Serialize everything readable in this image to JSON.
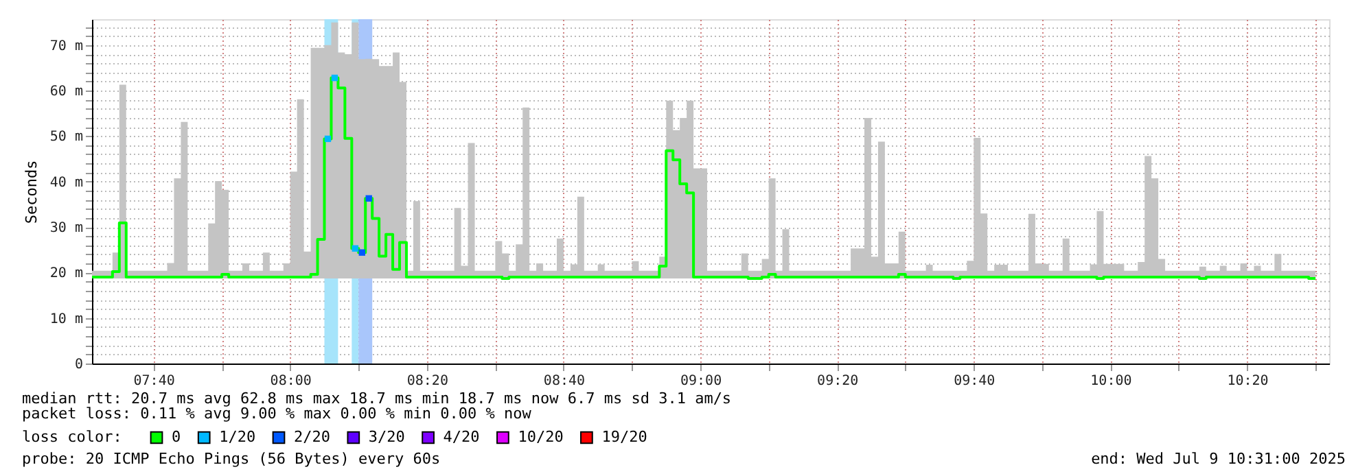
{
  "chart_data": {
    "type": "step",
    "ylabel": "Seconds",
    "legend_title": "loss color:",
    "legend": "bottom",
    "grid": true,
    "xlim": [
      "2025-07-09T07:31",
      "2025-07-09T10:32"
    ],
    "xticks": [
      {
        "value": "2025-07-09T07:40",
        "label": "07:40"
      },
      {
        "value": "2025-07-09T07:50",
        "label": null
      },
      {
        "value": "2025-07-09T08:00",
        "label": "08:00"
      },
      {
        "value": "2025-07-09T08:10",
        "label": null
      },
      {
        "value": "2025-07-09T08:20",
        "label": "08:20"
      },
      {
        "value": "2025-07-09T08:30",
        "label": null
      },
      {
        "value": "2025-07-09T08:40",
        "label": "08:40"
      },
      {
        "value": "2025-07-09T08:50",
        "label": null
      },
      {
        "value": "2025-07-09T09:00",
        "label": "09:00"
      },
      {
        "value": "2025-07-09T09:10",
        "label": null
      },
      {
        "value": "2025-07-09T09:20",
        "label": "09:20"
      },
      {
        "value": "2025-07-09T09:30",
        "label": null
      },
      {
        "value": "2025-07-09T09:40",
        "label": "09:40"
      },
      {
        "value": "2025-07-09T09:50",
        "label": null
      },
      {
        "value": "2025-07-09T10:00",
        "label": "10:00"
      },
      {
        "value": "2025-07-09T10:10",
        "label": null
      },
      {
        "value": "2025-07-09T10:20",
        "label": "10:20"
      },
      {
        "value": "2025-07-09T10:30",
        "label": null
      }
    ],
    "ylim": [
      0,
      75.7
    ],
    "yticks": [
      0,
      {
        "value": 2,
        "label": null
      },
      {
        "value": 4,
        "label": null
      },
      {
        "value": 6,
        "label": null
      },
      {
        "value": 8,
        "label": null
      },
      {
        "value": 10,
        "label": "10 m"
      },
      {
        "value": 12,
        "label": null
      },
      {
        "value": 14,
        "label": null
      },
      {
        "value": 16,
        "label": null
      },
      {
        "value": 18,
        "label": null
      },
      {
        "value": 20,
        "label": "20 m"
      },
      {
        "value": 22,
        "label": null
      },
      {
        "value": 24,
        "label": null
      },
      {
        "value": 26,
        "label": null
      },
      {
        "value": 28,
        "label": null
      },
      {
        "value": 30,
        "label": "30 m"
      },
      {
        "value": 32,
        "label": null
      },
      {
        "value": 34,
        "label": null
      },
      {
        "value": 36,
        "label": null
      },
      {
        "value": 38,
        "label": null
      },
      {
        "value": 40,
        "label": "40 m"
      },
      {
        "value": 42,
        "label": null
      },
      {
        "value": 44,
        "label": null
      },
      {
        "value": 46,
        "label": null
      },
      {
        "value": 48,
        "label": null
      },
      {
        "value": 50,
        "label": "50 m"
      },
      {
        "value": 52,
        "label": null
      },
      {
        "value": 54,
        "label": null
      },
      {
        "value": 56,
        "label": null
      },
      {
        "value": 58,
        "label": null
      },
      {
        "value": 60,
        "label": "60 m"
      },
      {
        "value": 62,
        "label": null
      },
      {
        "value": 64,
        "label": null
      },
      {
        "value": 66,
        "label": null
      },
      {
        "value": 68,
        "label": null
      },
      {
        "value": 70,
        "label": "70 m"
      },
      {
        "value": 72,
        "label": null
      },
      {
        "value": 74,
        "label": null
      }
    ],
    "bands": [
      {
        "axis": "x",
        "from": "2025-07-09T08:05",
        "to": "2025-07-09T08:07",
        "color": "#a6e4fb"
      },
      {
        "axis": "x",
        "from": "2025-07-09T08:09",
        "to": "2025-07-09T08:10",
        "color": "#a6e4fb"
      },
      {
        "axis": "x",
        "from": "2025-07-09T08:10",
        "to": "2025-07-09T08:12",
        "color": "#a9c6fb"
      }
    ],
    "series": [
      {
        "name": "0",
        "color": "#00ff00",
        "x": [
          "2025-07-09T07:31",
          "2025-07-09T07:34",
          "2025-07-09T07:35",
          "2025-07-09T07:36",
          "2025-07-09T07:42",
          "2025-07-09T07:43",
          "2025-07-09T07:44",
          "2025-07-09T07:45",
          "2025-07-09T07:48",
          "2025-07-09T07:49",
          "2025-07-09T07:50",
          "2025-07-09T07:51",
          "2025-07-09T07:53",
          "2025-07-09T07:54",
          "2025-07-09T07:56",
          "2025-07-09T07:57",
          "2025-07-09T07:59",
          "2025-07-09T08:00",
          "2025-07-09T08:01",
          "2025-07-09T08:02",
          "2025-07-09T08:03",
          "2025-07-09T08:04",
          "2025-07-09T08:05",
          "2025-07-09T08:06",
          "2025-07-09T08:07",
          "2025-07-09T08:08",
          "2025-07-09T08:09",
          "2025-07-09T08:10",
          "2025-07-09T08:11",
          "2025-07-09T08:12",
          "2025-07-09T08:13",
          "2025-07-09T08:14",
          "2025-07-09T08:15",
          "2025-07-09T08:16",
          "2025-07-09T08:17",
          "2025-07-09T08:18",
          "2025-07-09T08:19",
          "2025-07-09T08:24",
          "2025-07-09T08:25",
          "2025-07-09T08:26",
          "2025-07-09T08:27",
          "2025-07-09T08:30",
          "2025-07-09T08:31",
          "2025-07-09T08:32",
          "2025-07-09T08:33",
          "2025-07-09T08:34",
          "2025-07-09T08:35",
          "2025-07-09T08:36",
          "2025-07-09T08:37",
          "2025-07-09T08:39",
          "2025-07-09T08:40",
          "2025-07-09T08:41",
          "2025-07-09T08:42",
          "2025-07-09T08:43",
          "2025-07-09T08:45",
          "2025-07-09T08:46",
          "2025-07-09T08:50",
          "2025-07-09T08:51",
          "2025-07-09T08:54",
          "2025-07-09T08:55",
          "2025-07-09T08:56",
          "2025-07-09T08:57",
          "2025-07-09T08:58",
          "2025-07-09T08:59",
          "2025-07-09T09:01",
          "2025-07-09T09:06",
          "2025-07-09T09:07",
          "2025-07-09T09:09",
          "2025-07-09T09:10",
          "2025-07-09T09:11",
          "2025-07-09T09:12",
          "2025-07-09T09:13",
          "2025-07-09T09:22",
          "2025-07-09T09:24",
          "2025-07-09T09:25",
          "2025-07-09T09:26",
          "2025-07-09T09:27",
          "2025-07-09T09:29",
          "2025-07-09T09:30",
          "2025-07-09T09:33",
          "2025-07-09T09:34",
          "2025-07-09T09:37",
          "2025-07-09T09:38",
          "2025-07-09T09:39",
          "2025-07-09T09:40",
          "2025-07-09T09:41",
          "2025-07-09T09:42",
          "2025-07-09T09:43",
          "2025-07-09T09:45",
          "2025-07-09T09:48",
          "2025-07-09T09:49",
          "2025-07-09T09:50",
          "2025-07-09T09:51",
          "2025-07-09T09:53",
          "2025-07-09T09:54",
          "2025-07-09T09:57",
          "2025-07-09T09:58",
          "2025-07-09T09:59",
          "2025-07-09T10:02",
          "2025-07-09T10:04",
          "2025-07-09T10:05",
          "2025-07-09T10:06",
          "2025-07-09T10:07",
          "2025-07-09T10:08",
          "2025-07-09T10:13",
          "2025-07-09T10:14",
          "2025-07-09T10:16",
          "2025-07-09T10:17",
          "2025-07-09T10:19",
          "2025-07-09T10:20",
          "2025-07-09T10:21",
          "2025-07-09T10:22",
          "2025-07-09T10:24",
          "2025-07-09T10:25",
          "2025-07-09T10:27",
          "2025-07-09T10:29",
          "2025-07-09T10:30"
        ],
        "values": [
          19.0,
          20.2,
          30.9,
          19.0,
          19.0,
          19.0,
          19.0,
          19.0,
          19.0,
          19.0,
          19.6,
          19.0,
          19.0,
          19.0,
          19.0,
          19.0,
          19.0,
          19.0,
          19.0,
          19.0,
          19.6,
          27.3,
          49.4,
          62.8,
          60.6,
          49.5,
          25.3,
          24.4,
          36.3,
          31.9,
          23.6,
          28.4,
          20.7,
          26.6,
          19.0,
          19.0,
          19.0,
          19.0,
          19.0,
          19.0,
          19.0,
          19.0,
          18.7,
          19.0,
          19.0,
          19.0,
          19.0,
          19.0,
          19.0,
          19.0,
          19.0,
          19.0,
          19.0,
          19.0,
          19.0,
          19.0,
          19.0,
          19.0,
          21.4,
          46.8,
          44.8,
          39.5,
          37.5,
          19.0,
          19.0,
          19.0,
          18.7,
          19.0,
          19.6,
          19.0,
          19.0,
          19.0,
          19.0,
          19.0,
          19.0,
          19.0,
          19.0,
          19.6,
          19.0,
          19.0,
          19.0,
          18.7,
          19.0,
          19.0,
          19.0,
          19.0,
          19.0,
          19.0,
          19.0,
          19.0,
          19.0,
          19.0,
          19.0,
          19.0,
          19.0,
          19.0,
          18.7,
          19.0,
          19.0,
          19.0,
          19.0,
          19.0,
          19.0,
          19.0,
          18.7,
          19.0,
          19.0,
          19.0,
          19.0,
          19.0,
          19.0,
          19.0,
          19.0,
          19.0,
          19.0,
          18.7,
          18.7
        ],
        "lower": [
          18.7,
          18.7,
          18.7,
          18.7,
          18.7,
          18.7,
          18.7,
          18.7,
          18.7,
          18.7,
          18.7,
          18.7,
          18.7,
          18.7,
          18.7,
          18.7,
          18.7,
          18.7,
          18.7,
          18.7,
          18.7,
          18.7,
          18.7,
          18.7,
          18.7,
          18.7,
          18.7,
          18.7,
          18.7,
          18.7,
          18.7,
          18.7,
          18.7,
          18.7,
          18.7,
          18.7,
          18.7,
          18.7,
          18.7,
          18.7,
          18.7,
          18.7,
          18.7,
          18.7,
          18.7,
          18.7,
          18.7,
          18.7,
          18.7,
          18.7,
          18.7,
          18.7,
          18.7,
          18.7,
          18.7,
          18.7,
          18.7,
          18.7,
          18.7,
          18.7,
          18.7,
          18.7,
          18.7,
          18.7,
          18.7,
          18.7,
          18.7,
          18.7,
          18.7,
          18.7,
          18.7,
          18.7,
          18.7,
          18.7,
          18.7,
          18.7,
          18.7,
          18.7,
          18.7,
          18.7,
          18.7,
          18.7,
          18.7,
          18.7,
          18.7,
          18.7,
          18.7,
          18.7,
          18.7,
          18.7,
          18.7,
          18.7,
          18.7,
          18.7,
          18.7,
          18.7,
          18.7,
          18.7,
          18.7,
          18.7,
          18.7,
          18.7,
          18.7,
          18.7,
          18.7,
          18.7,
          18.7,
          18.7,
          18.7,
          18.7,
          18.7,
          18.7,
          18.7,
          18.7,
          18.7,
          18.7,
          18.7
        ],
        "upper": [
          20.4,
          24.4,
          61.3,
          20.4,
          22.1,
          40.7,
          53.1,
          20.4,
          30.8,
          40.1,
          38.2,
          20.4,
          22.0,
          20.4,
          24.4,
          20.4,
          22.0,
          42.2,
          58.1,
          24.6,
          69.4,
          69.4,
          70.0,
          75.0,
          68.4,
          68.0,
          75.0,
          66.9,
          67.0,
          66.9,
          65.4,
          65.4,
          68.4,
          61.9,
          20.4,
          35.7,
          20.4,
          34.2,
          21.5,
          48.5,
          20.4,
          26.9,
          24.2,
          20.4,
          26.2,
          56.3,
          20.4,
          22.0,
          20.4,
          27.5,
          20.4,
          21.8,
          36.7,
          20.4,
          21.8,
          20.4,
          22.5,
          20.4,
          23.5,
          57.8,
          51.3,
          54.0,
          57.8,
          42.9,
          20.4,
          24.2,
          20.4,
          23.0,
          40.7,
          20.4,
          29.5,
          20.4,
          25.3,
          54.0,
          23.5,
          48.8,
          22.0,
          29.0,
          20.4,
          21.7,
          20.4,
          20.4,
          20.4,
          22.6,
          49.6,
          33.0,
          20.4,
          21.7,
          20.4,
          32.9,
          22.0,
          21.9,
          20.4,
          27.5,
          20.4,
          21.8,
          33.5,
          21.9,
          20.4,
          22.3,
          45.6,
          40.7,
          23.0,
          20.4,
          21.3,
          20.4,
          21.5,
          20.4,
          22.0,
          20.4,
          21.5,
          20.4,
          24.1,
          20.4,
          20.4,
          20.4,
          20.4
        ]
      },
      {
        "name": "1/20",
        "type": "scatter",
        "color": "#00b8ff",
        "marker": "square",
        "x": [
          "2025-07-09T08:05",
          "2025-07-09T08:06",
          "2025-07-09T08:09"
        ],
        "values": [
          49.4,
          62.8,
          25.3
        ]
      },
      {
        "name": "2/20",
        "type": "scatter",
        "color": "#0059ff",
        "marker": "square",
        "x": [
          "2025-07-09T08:10",
          "2025-07-09T08:11"
        ],
        "values": [
          24.4,
          36.3
        ]
      },
      {
        "name": "3/20",
        "type": "scatter",
        "color": "#5e00ff"
      },
      {
        "name": "4/20",
        "type": "scatter",
        "color": "#7e00ff"
      },
      {
        "name": "10/20",
        "type": "scatter",
        "color": "#dd00ff"
      },
      {
        "name": "19/20",
        "type": "scatter",
        "color": "#ff0000"
      }
    ],
    "annotations": [
      "median rtt:  20.7 ms avg  62.8 ms max  18.7 ms min  18.7 ms now  6.7 ms sd  3.1   am/s",
      "packet loss: 0.11 % avg  9.00 % max  0.00 % min  0.00 % now",
      "probe:       20 ICMP Echo Pings (56 Bytes) every 60s",
      "end: Wed Jul  9 10:31:00 2025"
    ]
  }
}
